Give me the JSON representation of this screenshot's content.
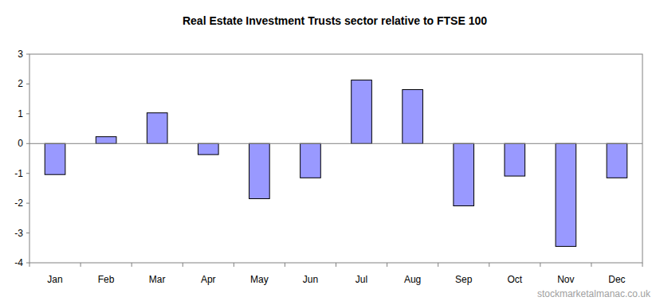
{
  "chart_data": {
    "type": "bar",
    "title": "Real Estate Investment Trusts sector relative to FTSE 100",
    "categories": [
      "Jan",
      "Feb",
      "Mar",
      "Apr",
      "May",
      "Jun",
      "Jul",
      "Aug",
      "Sep",
      "Oct",
      "Nov",
      "Dec"
    ],
    "values": [
      -1.04,
      0.23,
      1.03,
      -0.37,
      -1.85,
      -1.15,
      2.13,
      1.81,
      -2.09,
      -1.09,
      -3.45,
      -1.15
    ],
    "color": "#9999ff",
    "ylim": [
      -4,
      3
    ],
    "yticks": [
      -4,
      -3,
      -2,
      -1,
      0,
      1,
      2,
      3
    ],
    "grid": false,
    "source": "stockmarketalmanac.co.uk"
  }
}
